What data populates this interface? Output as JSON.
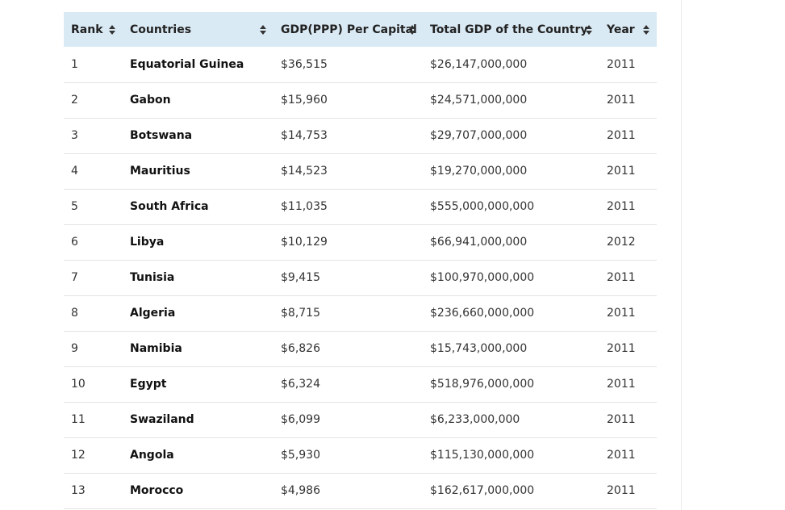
{
  "table": {
    "headers": [
      "Rank",
      "Countries",
      "GDP(PPP) Per Capital",
      "Total GDP of the Country",
      "Year"
    ],
    "rows": [
      {
        "rank": "1",
        "country": "Equatorial Guinea",
        "gdp_ppp_per_capita": "$36,515",
        "total_gdp": "$26,147,000,000",
        "year": "2011"
      },
      {
        "rank": "2",
        "country": "Gabon",
        "gdp_ppp_per_capita": "$15,960",
        "total_gdp": "$24,571,000,000",
        "year": "2011"
      },
      {
        "rank": "3",
        "country": "Botswana",
        "gdp_ppp_per_capita": "$14,753",
        "total_gdp": "$29,707,000,000",
        "year": "2011"
      },
      {
        "rank": "4",
        "country": "Mauritius",
        "gdp_ppp_per_capita": "$14,523",
        "total_gdp": "$19,270,000,000",
        "year": "2011"
      },
      {
        "rank": "5",
        "country": "South Africa",
        "gdp_ppp_per_capita": "$11,035",
        "total_gdp": "$555,000,000,000",
        "year": "2011"
      },
      {
        "rank": "6",
        "country": "Libya",
        "gdp_ppp_per_capita": "$10,129",
        "total_gdp": "$66,941,000,000",
        "year": "2012"
      },
      {
        "rank": "7",
        "country": "Tunisia",
        "gdp_ppp_per_capita": "$9,415",
        "total_gdp": "$100,970,000,000",
        "year": "2011"
      },
      {
        "rank": "8",
        "country": "Algeria",
        "gdp_ppp_per_capita": "$8,715",
        "total_gdp": "$236,660,000,000",
        "year": "2011"
      },
      {
        "rank": "9",
        "country": "Namibia",
        "gdp_ppp_per_capita": "$6,826",
        "total_gdp": "$15,743,000,000",
        "year": "2011"
      },
      {
        "rank": "10",
        "country": "Egypt",
        "gdp_ppp_per_capita": "$6,324",
        "total_gdp": "$518,976,000,000",
        "year": "2011"
      },
      {
        "rank": "11",
        "country": "Swaziland",
        "gdp_ppp_per_capita": "$6,099",
        "total_gdp": "$6,233,000,000",
        "year": "2011"
      },
      {
        "rank": "12",
        "country": "Angola",
        "gdp_ppp_per_capita": "$5,930",
        "total_gdp": "$115,130,000,000",
        "year": "2011"
      },
      {
        "rank": "13",
        "country": "Morocco",
        "gdp_ppp_per_capita": "$4,986",
        "total_gdp": "$162,617,000,000",
        "year": "2011"
      }
    ]
  },
  "icons": {
    "sort": "sort-icon"
  },
  "colors": {
    "header_background": "#daeaf5",
    "row_border": "#e3e3e3"
  }
}
